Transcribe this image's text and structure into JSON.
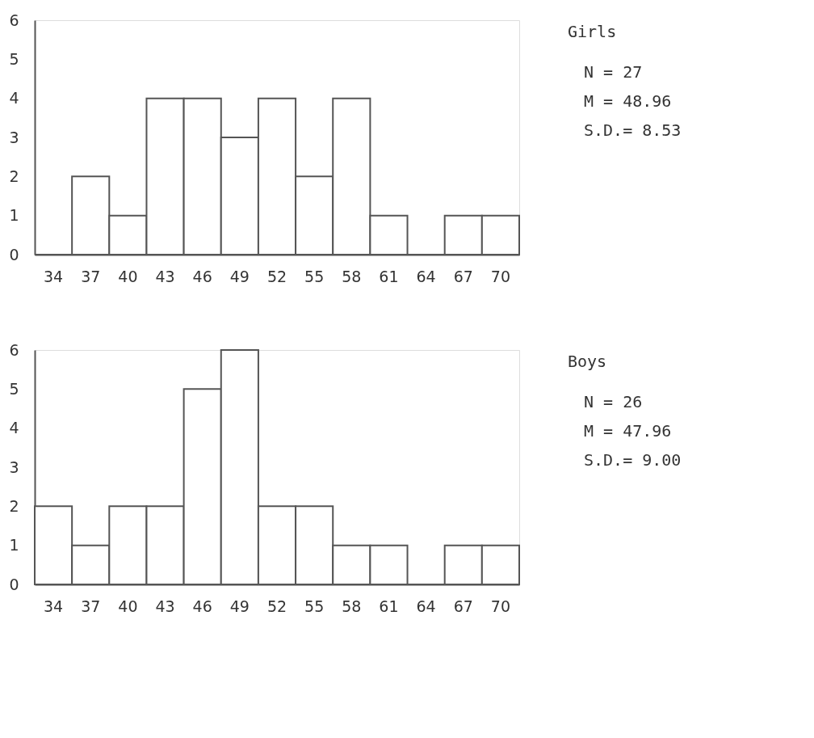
{
  "chart_data": [
    {
      "type": "bar",
      "categories": [
        "34",
        "37",
        "40",
        "43",
        "46",
        "49",
        "52",
        "55",
        "58",
        "61",
        "64",
        "67",
        "70"
      ],
      "values": [
        0,
        2,
        1,
        4,
        4,
        3,
        4,
        2,
        4,
        1,
        0,
        1,
        1
      ],
      "color": "#ffffff",
      "ylim": [
        0,
        6
      ],
      "yticks": [
        0,
        1,
        2,
        3,
        4,
        5,
        6
      ],
      "annotations": [
        "Girls",
        "N   =  27",
        "M   =  48.96",
        "S.D.=  8.53"
      ]
    },
    {
      "type": "bar",
      "categories": [
        "34",
        "37",
        "40",
        "43",
        "46",
        "49",
        "52",
        "55",
        "58",
        "61",
        "64",
        "67",
        "70"
      ],
      "values": [
        2,
        1,
        2,
        2,
        5,
        6,
        2,
        2,
        1,
        1,
        0,
        1,
        1
      ],
      "color": "#ffffff",
      "ylim": [
        0,
        6
      ],
      "yticks": [
        0,
        1,
        2,
        3,
        4,
        5,
        6
      ],
      "annotations": [
        "Boys",
        "N   = 26",
        "M   = 47.96",
        "S.D.= 9.00"
      ]
    }
  ]
}
